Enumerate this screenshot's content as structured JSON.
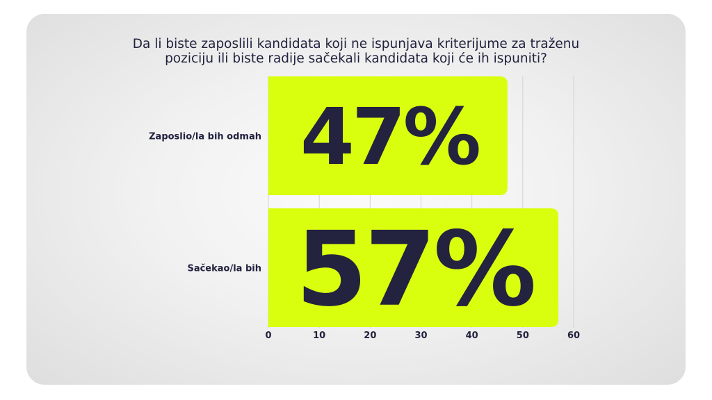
{
  "chart_data": {
    "type": "bar",
    "orientation": "horizontal",
    "title_lines": [
      "Da li biste zaposlili kandidata koji ne ispunjava kriterijume za traženu",
      "poziciju ili biste radije sačekali kandidata koji će ih ispuniti?"
    ],
    "categories": [
      "Zaposlio/la bih odmah",
      "Sačekao/la bih"
    ],
    "values": [
      47,
      57
    ],
    "value_labels": [
      "47%",
      "57%"
    ],
    "xlim": [
      0,
      60
    ],
    "x_ticks": [
      0,
      10,
      20,
      30,
      40,
      50,
      60
    ],
    "xlabel": "",
    "ylabel": "",
    "grid": true,
    "legend": "none",
    "bar_color": "#d9ff0f",
    "text_color": "#22223f"
  }
}
